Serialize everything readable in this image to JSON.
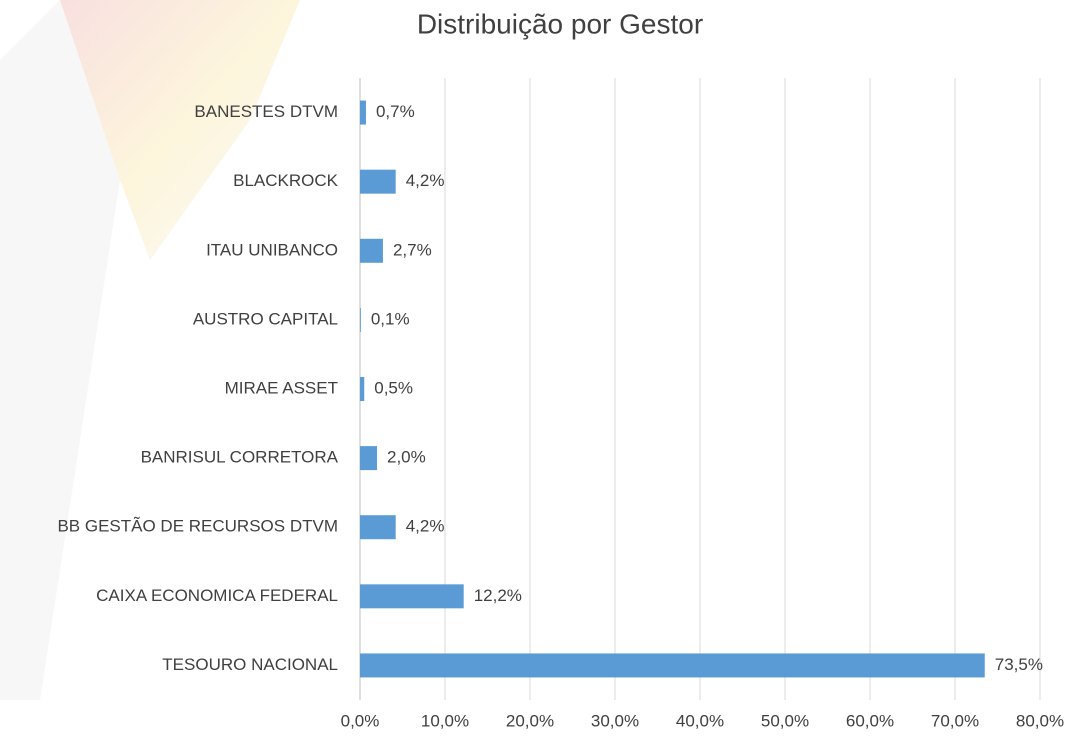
{
  "chart_data": {
    "type": "bar",
    "orientation": "horizontal",
    "title": "Distribuição por Gestor",
    "categories": [
      "BANESTES DTVM",
      "BLACKROCK",
      "ITAU UNIBANCO",
      "AUSTRO CAPITAL",
      "MIRAE ASSET",
      "BANRISUL CORRETORA",
      "BB GESTÃO DE RECURSOS DTVM",
      "CAIXA ECONOMICA FEDERAL",
      "TESOURO NACIONAL"
    ],
    "values": [
      0.7,
      4.2,
      2.7,
      0.1,
      0.5,
      2.0,
      4.2,
      12.2,
      73.5
    ],
    "value_labels": [
      "0,7%",
      "4,2%",
      "2,7%",
      "0,1%",
      "0,5%",
      "2,0%",
      "4,2%",
      "12,2%",
      "73,5%"
    ],
    "color": "#5b9bd5",
    "xlim": [
      0,
      80
    ],
    "xticks": [
      {
        "value": 0,
        "label": "0,0%"
      },
      {
        "value": 10,
        "label": "10,0%"
      },
      {
        "value": 20,
        "label": "20,0%"
      },
      {
        "value": 30,
        "label": "30,0%"
      },
      {
        "value": 40,
        "label": "40,0%"
      },
      {
        "value": 50,
        "label": "50,0%"
      },
      {
        "value": 60,
        "label": "60,0%"
      },
      {
        "value": 70,
        "label": "70,0%"
      },
      {
        "value": 80,
        "label": "80,0%"
      }
    ],
    "grid": true
  }
}
